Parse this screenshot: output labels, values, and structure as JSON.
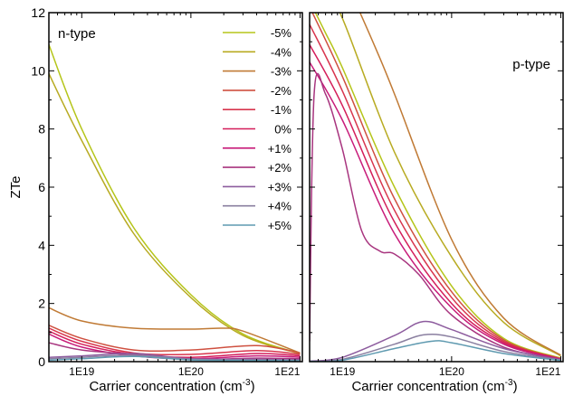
{
  "figure": {
    "ylabel": "ZTe",
    "xlabel_text": "Carrier concentration (cm",
    "xlabel_sup": "-3",
    "xlabel_close": ")"
  },
  "chart_data": [
    {
      "type": "line",
      "panel": "left",
      "title": "n-type",
      "xlabel": "Carrier concentration (cm-3)",
      "ylabel": "ZTe",
      "xscale": "log",
      "xlim": [
        5e+18,
        1.05e+21
      ],
      "ylim": [
        0,
        12
      ],
      "xticks": [
        "1E19",
        "1E20",
        "1E21"
      ],
      "yticks": [
        "0",
        "2",
        "4",
        "6",
        "8",
        "10",
        "12"
      ],
      "legend_position": "top-right",
      "series": [
        {
          "name": "-5%",
          "color": "#b5c51a",
          "x": [
            5e+18,
            1e+19,
            3e+19,
            1e+20,
            3e+20,
            1e+21
          ],
          "y": [
            10.9,
            8.0,
            4.6,
            2.3,
            0.95,
            0.28
          ]
        },
        {
          "name": "-4%",
          "color": "#b8ab22",
          "x": [
            5e+18,
            1e+19,
            3e+19,
            1e+20,
            3e+20,
            1e+21
          ],
          "y": [
            9.9,
            7.6,
            4.4,
            2.2,
            0.9,
            0.27
          ]
        },
        {
          "name": "-3%",
          "color": "#c07a35",
          "x": [
            5e+18,
            1e+19,
            3e+19,
            1e+20,
            2e+20,
            3e+20,
            1e+21
          ],
          "y": [
            1.85,
            1.4,
            1.15,
            1.12,
            1.15,
            1.05,
            0.3
          ]
        },
        {
          "name": "-2%",
          "color": "#cf5040",
          "x": [
            5e+18,
            1e+19,
            3e+19,
            1e+20,
            4e+20,
            1e+21
          ],
          "y": [
            1.25,
            0.8,
            0.4,
            0.4,
            0.55,
            0.3
          ]
        },
        {
          "name": "-1%",
          "color": "#d8354d",
          "x": [
            5e+18,
            1e+19,
            3e+19,
            1e+20,
            4e+20,
            1e+21
          ],
          "y": [
            1.15,
            0.7,
            0.3,
            0.25,
            0.38,
            0.25
          ]
        },
        {
          "name": "0%",
          "color": "#d41e5a",
          "x": [
            5e+18,
            1e+19,
            3e+19,
            1e+20,
            4e+20,
            1e+21
          ],
          "y": [
            1.05,
            0.6,
            0.25,
            0.15,
            0.28,
            0.2
          ]
        },
        {
          "name": "+1%",
          "color": "#c81c7a",
          "x": [
            5e+18,
            1e+19,
            3e+19,
            1e+20,
            4e+20,
            1e+21
          ],
          "y": [
            0.95,
            0.5,
            0.2,
            0.1,
            0.2,
            0.15
          ]
        },
        {
          "name": "+2%",
          "color": "#a8357f",
          "x": [
            5e+18,
            1e+19,
            3e+19,
            1e+20,
            4e+20,
            1e+21
          ],
          "y": [
            0.65,
            0.4,
            0.25,
            0.08,
            0.12,
            0.1
          ]
        },
        {
          "name": "+3%",
          "color": "#8d5c9e",
          "x": [
            5e+18,
            1e+19,
            3e+19,
            1e+20,
            4e+20,
            1e+21
          ],
          "y": [
            0.15,
            0.2,
            0.28,
            0.1,
            0.08,
            0.06
          ]
        },
        {
          "name": "+4%",
          "color": "#8a7fa0",
          "x": [
            5e+18,
            1e+19,
            3e+19,
            1e+20,
            4e+20,
            1e+21
          ],
          "y": [
            0.1,
            0.15,
            0.22,
            0.08,
            0.05,
            0.04
          ]
        },
        {
          "name": "+5%",
          "color": "#5f9ab0",
          "x": [
            5e+18,
            1e+19,
            3e+19,
            1e+20,
            4e+20,
            1e+21
          ],
          "y": [
            0.05,
            0.1,
            0.18,
            0.06,
            0.04,
            0.03
          ]
        }
      ]
    },
    {
      "type": "line",
      "panel": "right",
      "title": "p-type",
      "xlabel": "Carrier concentration (cm-3)",
      "xscale": "log",
      "xlim": [
        5e+18,
        1.05e+21
      ],
      "ylim": [
        0,
        12
      ],
      "xticks": [
        "1E19",
        "1E20",
        "1E21"
      ],
      "series": [
        {
          "name": "-5%",
          "color": "#b5c51a",
          "x": [
            5e+18,
            7e+18,
            1e+19,
            3e+19,
            1e+20,
            3e+20,
            1e+21
          ],
          "y": [
            12.4,
            11.3,
            10.1,
            6.0,
            2.6,
            0.8,
            0.12
          ]
        },
        {
          "name": "-4%",
          "color": "#b8ab22",
          "x": [
            7.5e+18,
            1e+19,
            3e+19,
            1e+20,
            3e+20,
            1e+21
          ],
          "y": [
            12.4,
            11.8,
            7.2,
            3.6,
            1.35,
            0.2
          ]
        },
        {
          "name": "-3%",
          "color": "#c07a35",
          "x": [
            1.3e+19,
            2e+19,
            3e+19,
            1e+20,
            3e+20,
            1e+21
          ],
          "y": [
            12.4,
            10.8,
            9.2,
            4.2,
            1.5,
            0.22
          ]
        },
        {
          "name": "-2%",
          "color": "#cf5040",
          "x": [
            5e+18,
            1e+19,
            3e+19,
            1e+20,
            3e+20,
            1e+21
          ],
          "y": [
            12.2,
            9.8,
            5.6,
            2.4,
            0.75,
            0.1
          ]
        },
        {
          "name": "-1%",
          "color": "#d8354d",
          "x": [
            5e+18,
            1e+19,
            3e+19,
            1e+20,
            3e+20,
            1e+21
          ],
          "y": [
            11.6,
            9.3,
            5.2,
            2.2,
            0.7,
            0.1
          ]
        },
        {
          "name": "0%",
          "color": "#d41e5a",
          "x": [
            5e+18,
            1e+19,
            3e+19,
            1e+20,
            3e+20,
            1e+21
          ],
          "y": [
            10.9,
            8.8,
            4.8,
            2.0,
            0.65,
            0.09
          ]
        },
        {
          "name": "+1%",
          "color": "#c81c7a",
          "x": [
            5e+18,
            1e+19,
            3e+19,
            1e+20,
            3e+20,
            1e+21
          ],
          "y": [
            10.3,
            8.3,
            4.4,
            1.85,
            0.6,
            0.09
          ]
        },
        {
          "name": "+2%",
          "color": "#a8357f",
          "x": [
            5e+18,
            5.5e+18,
            7e+18,
            1e+19,
            1.5e+19,
            2.2e+19,
            3e+19,
            5e+19,
            1e+20,
            3e+20,
            1e+21
          ],
          "y": [
            0.7,
            9.2,
            9.2,
            7.3,
            4.5,
            3.8,
            3.7,
            3.0,
            1.6,
            0.5,
            0.08
          ]
        },
        {
          "name": "+3%",
          "color": "#8d5c9e",
          "x": [
            5e+18,
            1e+19,
            3e+19,
            5.5e+19,
            1e+20,
            3e+20,
            1e+21
          ],
          "y": [
            0.02,
            0.15,
            0.9,
            1.38,
            1.1,
            0.45,
            0.06
          ]
        },
        {
          "name": "+4%",
          "color": "#8a7fa0",
          "x": [
            5e+18,
            1e+19,
            3e+19,
            5.5e+19,
            1e+20,
            3e+20,
            1e+21
          ],
          "y": [
            0.01,
            0.08,
            0.6,
            0.92,
            0.85,
            0.35,
            0.05
          ]
        },
        {
          "name": "+5%",
          "color": "#5f9ab0",
          "x": [
            5e+18,
            1e+19,
            3e+19,
            6.5e+19,
            1e+20,
            3e+20,
            1e+21
          ],
          "y": [
            0.01,
            0.05,
            0.45,
            0.7,
            0.65,
            0.28,
            0.04
          ]
        }
      ]
    }
  ]
}
